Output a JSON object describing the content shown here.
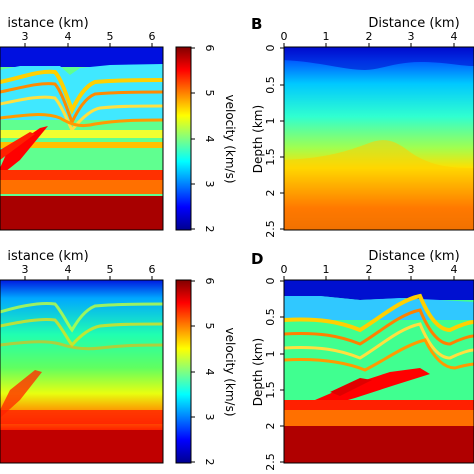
{
  "colors": {
    "jet": [
      "#00008f",
      "#0000ff",
      "#0080ff",
      "#00ffff",
      "#80ff80",
      "#ffff00",
      "#ff8000",
      "#ff0000",
      "#800000"
    ],
    "deep_red": "#a50000",
    "frame": "#000000"
  },
  "chart_data": [
    {
      "id": "A",
      "type": "heatmap",
      "panel_letter": "",
      "title": "",
      "xlabel": "Distance (km)",
      "ylabel": "",
      "x_ticks": [
        "3",
        "4",
        "5",
        "6"
      ],
      "y_ticks": [],
      "description_visible": "true velocity model (layered with thrust/fold structure)"
    },
    {
      "id": "B",
      "type": "heatmap",
      "panel_letter": "B",
      "title": "",
      "xlabel": "Distance (km)",
      "ylabel": "Depth (km)",
      "x_ticks": [
        "0",
        "1",
        "2",
        "3",
        "4"
      ],
      "y_ticks": [
        "0",
        "0.5",
        "1",
        "1.5",
        "2",
        "2.5"
      ],
      "xlim": [
        0,
        4.5
      ],
      "ylim": [
        0,
        2.5
      ]
    },
    {
      "id": "C",
      "type": "heatmap",
      "panel_letter": "",
      "title": "",
      "xlabel": "Distance (km)",
      "ylabel": "",
      "x_ticks": [
        "3",
        "4",
        "5",
        "6"
      ],
      "y_ticks": []
    },
    {
      "id": "D",
      "type": "heatmap",
      "panel_letter": "D",
      "title": "",
      "xlabel": "Distance (km)",
      "ylabel": "Depth (km)",
      "x_ticks": [
        "0",
        "1",
        "2",
        "3",
        "4"
      ],
      "y_ticks": [
        "0",
        "0.5",
        "1",
        "1.5",
        "2",
        "2.5"
      ],
      "xlim": [
        0,
        4.5
      ],
      "ylim": [
        0,
        2.5
      ]
    }
  ],
  "colorbars": [
    {
      "label": "velocity (km/s)",
      "ticks": [
        "2",
        "3",
        "4",
        "5",
        "6"
      ],
      "range": [
        2,
        6
      ]
    },
    {
      "label": "velocity (km/s)",
      "ticks": [
        "2",
        "3",
        "4",
        "5",
        "6"
      ],
      "range": [
        2,
        6
      ]
    }
  ],
  "labels": {
    "panel_b": "B",
    "panel_d": "D",
    "xlabel_a": "istance (km)",
    "xlabel_b": "Distance (km)",
    "xlabel_c": "istance (km)",
    "xlabel_d": "Distance (km)",
    "ylabel_b": "Depth (km)",
    "ylabel_d": "Depth (km)",
    "cbar_label_top": "velocity (km/s)",
    "cbar_label_bottom": "velocity (km/s)"
  }
}
